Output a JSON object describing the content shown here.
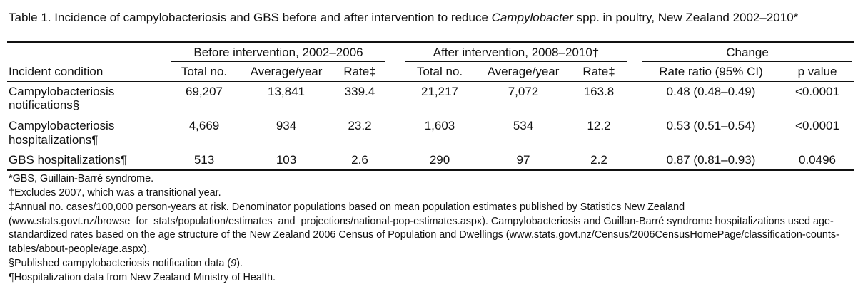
{
  "caption": {
    "pre": "Table 1. Incidence of campylobacteriosis and GBS before and after intervention to reduce ",
    "italic": "Campylobacter",
    "post": " spp. in poultry, New Zealand 2002–2010*"
  },
  "groups": {
    "before": "Before intervention, 2002–2006",
    "after": "After intervention, 2008–2010†",
    "change": "Change"
  },
  "columns": {
    "condition": "Incident condition",
    "total1": "Total no.",
    "avg1": "Average/year",
    "rate1": "Rate‡",
    "total2": "Total no.",
    "avg2": "Average/year",
    "rate2": "Rate‡",
    "ratio": "Rate ratio (95% CI)",
    "pvalue": "p value"
  },
  "rows": [
    {
      "l1": "Campylobacteriosis",
      "l2": "notifications§",
      "total1": "69,207",
      "avg1": "13,841",
      "rate1": "339.4",
      "total2": "21,217",
      "avg2": "7,072",
      "rate2": "163.8",
      "ratio": "0.48 (0.48–0.49)",
      "pvalue": "<0.0001"
    },
    {
      "l1": "Campylobacteriosis",
      "l2": "hospitalizations¶",
      "total1": "4,669",
      "avg1": "934",
      "rate1": "23.2",
      "total2": "1,603",
      "avg2": "534",
      "rate2": "12.2",
      "ratio": "0.53 (0.51–0.54)",
      "pvalue": "<0.0001"
    },
    {
      "l1": "GBS hospitalizations¶",
      "l2": "",
      "total1": "513",
      "avg1": "103",
      "rate1": "2.6",
      "total2": "290",
      "avg2": "97",
      "rate2": "2.2",
      "ratio": "0.87 (0.81–0.93)",
      "pvalue": "0.0496"
    }
  ],
  "footnotes": {
    "f1": "*GBS, Guillain-Barré syndrome.",
    "f2": "†Excludes 2007, which was a transitional year.",
    "f3": "‡Annual no. cases/100,000 person-years at risk. Denominator populations based on mean population estimates published by Statistics New Zealand (www.stats.govt.nz/browse_for_stats/population/estimates_and_projections/national-pop-estimates.aspx). Campylobacteriosis and Guillan-Barré syndrome hospitalizations used age-standardized rates based on the age structure of the New Zealand 2006 Census of Population and Dwellings (www.stats.govt.nz/Census/2006CensusHomePage/classification-counts-tables/about-people/age.aspx).",
    "f4_pre": "§Published campylobacteriosis notification data (",
    "f4_ref": "9",
    "f4_post": ").",
    "f5": "¶Hospitalization data from New Zealand Ministry of Health."
  }
}
